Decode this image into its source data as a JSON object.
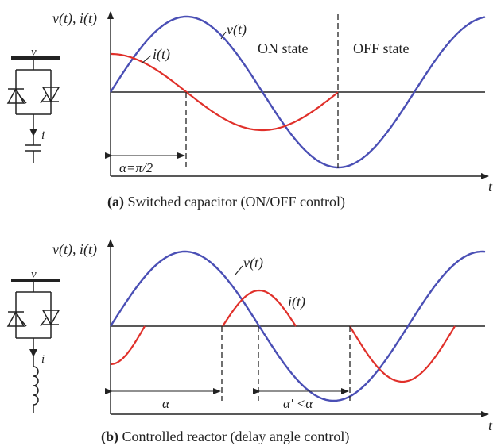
{
  "colors": {
    "voltage": "#4a4fb5",
    "current": "#e0302a",
    "ink": "#222222"
  },
  "panel_a": {
    "y_axis_label": "v(t), i(t)",
    "x_axis_label": "t",
    "curve_v_label": "v(t)",
    "curve_i_label": "i(t)",
    "on_state_label": "ON state",
    "off_state_label": "OFF state",
    "angle_label": "α=π/2",
    "circuit_node_label": "v",
    "circuit_current_label": "i",
    "caption_tag": "(a)",
    "caption_text": " Switched capacitor (ON/OFF control)"
  },
  "panel_b": {
    "y_axis_label": "v(t), i(t)",
    "x_axis_label": "t",
    "curve_v_label": "v(t)",
    "curve_i_label": "i(t)",
    "angle_label": "α",
    "angle2_label": "α' <α",
    "circuit_node_label": "v",
    "circuit_current_label": "i",
    "caption_tag": "(b)",
    "caption_text": " Controlled reactor (delay angle control)"
  }
}
